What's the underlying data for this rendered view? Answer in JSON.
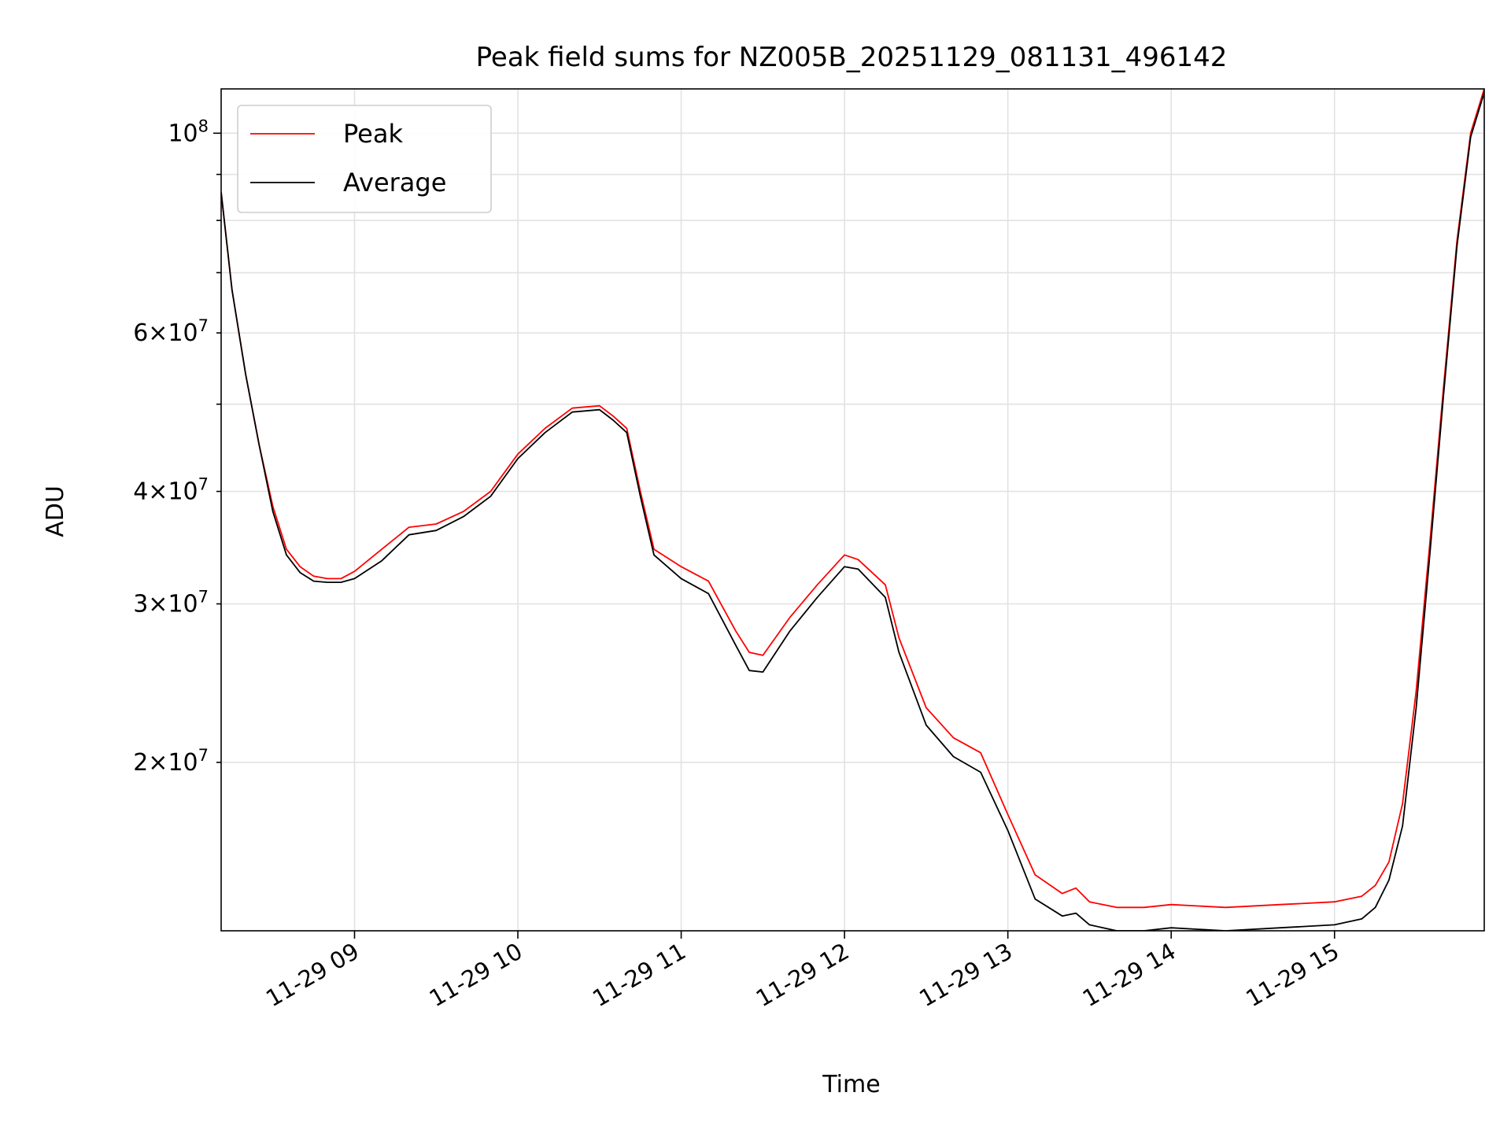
{
  "chart_data": {
    "type": "line",
    "title": "Peak field sums for NZ005B_20251129_081131_496142",
    "xlabel": "Time",
    "ylabel": "ADU",
    "y_scale": "log",
    "grid": true,
    "legend_position": "top-left",
    "xlim": [
      "2025-11-29 08:11",
      "2025-11-29 15:55"
    ],
    "ylim": [
      13000000,
      112000000
    ],
    "x_ticks": [
      "2025-11-29 09:00",
      "2025-11-29 10:00",
      "2025-11-29 11:00",
      "2025-11-29 12:00",
      "2025-11-29 13:00",
      "2025-11-29 14:00",
      "2025-11-29 15:00"
    ],
    "x_tick_labels": [
      "11-29 09",
      "11-29 10",
      "11-29 11",
      "11-29 12",
      "11-29 13",
      "11-29 14",
      "11-29 15"
    ],
    "y_ticks_major": [
      100000000
    ],
    "y_ticks_minor": [
      20000000,
      30000000,
      40000000,
      60000000
    ],
    "y_tick_labels_major": [
      {
        "base": "10",
        "exp": "8"
      }
    ],
    "y_tick_labels_minor": [
      {
        "mant": "2",
        "base": "10",
        "exp": "7"
      },
      {
        "mant": "3",
        "base": "10",
        "exp": "7"
      },
      {
        "mant": "4",
        "base": "10",
        "exp": "7"
      },
      {
        "mant": "6",
        "base": "10",
        "exp": "7"
      }
    ],
    "x": [
      "2025-11-29 08:11",
      "2025-11-29 08:15",
      "2025-11-29 08:20",
      "2025-11-29 08:25",
      "2025-11-29 08:30",
      "2025-11-29 08:35",
      "2025-11-29 08:40",
      "2025-11-29 08:45",
      "2025-11-29 08:50",
      "2025-11-29 08:55",
      "2025-11-29 09:00",
      "2025-11-29 09:10",
      "2025-11-29 09:20",
      "2025-11-29 09:30",
      "2025-11-29 09:40",
      "2025-11-29 09:50",
      "2025-11-29 10:00",
      "2025-11-29 10:10",
      "2025-11-29 10:20",
      "2025-11-29 10:30",
      "2025-11-29 10:35",
      "2025-11-29 10:40",
      "2025-11-29 10:45",
      "2025-11-29 10:50",
      "2025-11-29 11:00",
      "2025-11-29 11:10",
      "2025-11-29 11:20",
      "2025-11-29 11:25",
      "2025-11-29 11:30",
      "2025-11-29 11:40",
      "2025-11-29 11:50",
      "2025-11-29 12:00",
      "2025-11-29 12:05",
      "2025-11-29 12:15",
      "2025-11-29 12:20",
      "2025-11-29 12:30",
      "2025-11-29 12:40",
      "2025-11-29 12:50",
      "2025-11-29 13:00",
      "2025-11-29 13:10",
      "2025-11-29 13:20",
      "2025-11-29 13:25",
      "2025-11-29 13:30",
      "2025-11-29 13:40",
      "2025-11-29 13:50",
      "2025-11-29 14:00",
      "2025-11-29 14:20",
      "2025-11-29 14:40",
      "2025-11-29 15:00",
      "2025-11-29 15:10",
      "2025-11-29 15:15",
      "2025-11-29 15:20",
      "2025-11-29 15:25",
      "2025-11-29 15:30",
      "2025-11-29 15:35",
      "2025-11-29 15:40",
      "2025-11-29 15:45",
      "2025-11-29 15:50",
      "2025-11-29 15:55"
    ],
    "series": [
      {
        "name": "Peak",
        "color": "#ff0000",
        "values": [
          86000000,
          67000000,
          54000000,
          45000000,
          38500000,
          34500000,
          33000000,
          32200000,
          32000000,
          32000000,
          32600000,
          34500000,
          36500000,
          36800000,
          38000000,
          40000000,
          44000000,
          47000000,
          49500000,
          49800000,
          48500000,
          47000000,
          40000000,
          34500000,
          33000000,
          31800000,
          28000000,
          26500000,
          26300000,
          29000000,
          31500000,
          34000000,
          33600000,
          31500000,
          27500000,
          23000000,
          21300000,
          20500000,
          17500000,
          15000000,
          14300000,
          14500000,
          14000000,
          13800000,
          13800000,
          13900000,
          13800000,
          13900000,
          14000000,
          14200000,
          14600000,
          15500000,
          18000000,
          24000000,
          35000000,
          52000000,
          76000000,
          100000000,
          112000000
        ]
      },
      {
        "name": "Average",
        "color": "#000000",
        "values": [
          86000000,
          67000000,
          54000000,
          45000000,
          38000000,
          34000000,
          32500000,
          31800000,
          31700000,
          31700000,
          32000000,
          33500000,
          35800000,
          36200000,
          37500000,
          39500000,
          43500000,
          46500000,
          49000000,
          49300000,
          48000000,
          46500000,
          39500000,
          34000000,
          32000000,
          30800000,
          27000000,
          25300000,
          25200000,
          28000000,
          30500000,
          33000000,
          32800000,
          30500000,
          26500000,
          22000000,
          20300000,
          19500000,
          16800000,
          14100000,
          13500000,
          13600000,
          13200000,
          13000000,
          13000000,
          13100000,
          13000000,
          13100000,
          13200000,
          13400000,
          13800000,
          14800000,
          17000000,
          23000000,
          34000000,
          51000000,
          75000000,
          99000000,
          111000000
        ]
      }
    ]
  }
}
